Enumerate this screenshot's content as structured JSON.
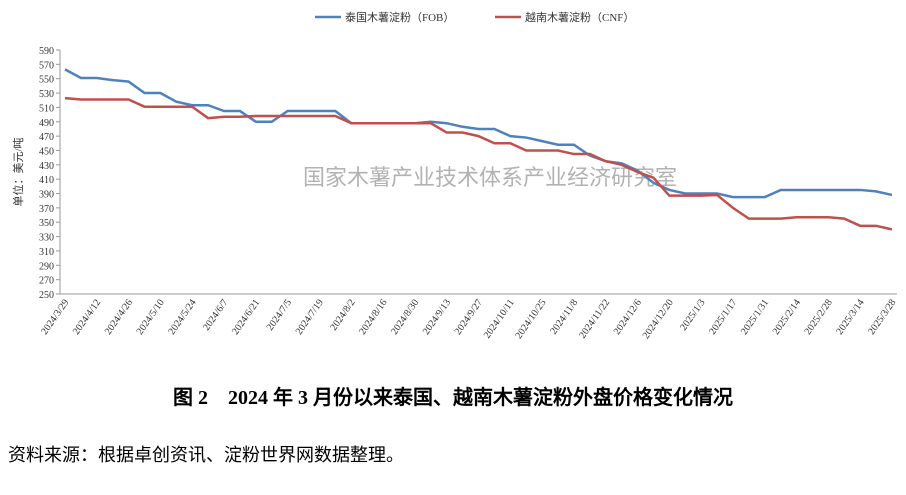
{
  "chart_data": {
    "type": "line",
    "y_label": "单位：美元/吨",
    "watermark": "国家木薯产业技术体系产业经济研究室",
    "caption": "图 2　2024 年 3 月份以来泰国、越南木薯淀粉外盘价格变化情况",
    "source": "资料来源：根据卓创资讯、淀粉世界网数据整理。",
    "categories": [
      "2024/3/29",
      null,
      "2024/4/12",
      null,
      "2024/4/26",
      null,
      "2024/5/10",
      null,
      "2024/5/24",
      null,
      "2024/6/7",
      null,
      "2024/6/21",
      null,
      "2024/7/5",
      null,
      "2024/7/19",
      null,
      "2024/8/2",
      null,
      "2024/8/16",
      null,
      "2024/8/30",
      null,
      "2024/9/13",
      null,
      "2024/9/27",
      null,
      "2024/10/11",
      null,
      "2024/10/25",
      null,
      "2024/11/8",
      null,
      "2024/11/22",
      null,
      "2024/12/6",
      null,
      "2024/12/20",
      null,
      "2025/1/3",
      null,
      "2025/1/17",
      null,
      "2025/1/31",
      null,
      "2025/2/14",
      null,
      "2025/2/28",
      null,
      "2025/3/14",
      null,
      "2025/3/28"
    ],
    "series": [
      {
        "name": "泰国木薯淀粉（FOB）",
        "color": "#4f81bd",
        "values": [
          563,
          551,
          551,
          548,
          546,
          530,
          530,
          518,
          513,
          513,
          505,
          505,
          490,
          490,
          505,
          505,
          505,
          505,
          488,
          488,
          488,
          488,
          488,
          490,
          488,
          483,
          480,
          480,
          470,
          468,
          463,
          458,
          458,
          443,
          435,
          432,
          422,
          405,
          395,
          390,
          390,
          390,
          385,
          385,
          385,
          395,
          395,
          395,
          395,
          395,
          395,
          393,
          388
        ]
      },
      {
        "name": "越南木薯淀粉（CNF）",
        "color": "#c0504d",
        "values": [
          523,
          521,
          521,
          521,
          521,
          511,
          511,
          511,
          511,
          495,
          497,
          497,
          498,
          498,
          498,
          498,
          498,
          498,
          488,
          488,
          488,
          488,
          488,
          488,
          475,
          475,
          470,
          460,
          460,
          450,
          450,
          450,
          445,
          445,
          435,
          430,
          420,
          412,
          387,
          387,
          387,
          388,
          370,
          355,
          355,
          355,
          357,
          357,
          357,
          355,
          345,
          345,
          340
        ]
      }
    ],
    "ylim": [
      250,
      590
    ],
    "yticks": [
      250,
      270,
      290,
      310,
      330,
      350,
      370,
      390,
      410,
      430,
      450,
      470,
      490,
      510,
      530,
      550,
      570,
      590
    ],
    "legend": "top"
  }
}
